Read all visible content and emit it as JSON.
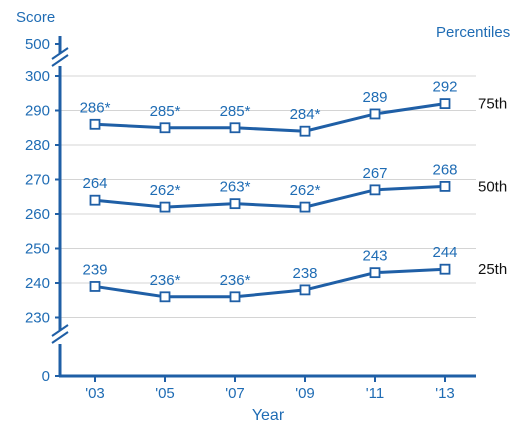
{
  "chart_data": {
    "type": "line",
    "ylabel": "Score",
    "xlabel": "Year",
    "legend_title": "Percentiles",
    "x": [
      "'03",
      "'05",
      "'07",
      "'09",
      "'11",
      "'13"
    ],
    "y_ticks": [
      "0",
      "230",
      "240",
      "250",
      "260",
      "270",
      "280",
      "290",
      "300",
      "500"
    ],
    "ylim_shown": [
      225,
      300
    ],
    "axis_breaks": "broken y-axis between 0 and 230 and between 300 and 500",
    "grid": true,
    "series": [
      {
        "name": "75th",
        "values": [
          286,
          285,
          285,
          284,
          289,
          292
        ],
        "labels": [
          "286*",
          "285*",
          "285*",
          "284*",
          "289",
          "292"
        ]
      },
      {
        "name": "50th",
        "values": [
          264,
          262,
          263,
          262,
          267,
          268
        ],
        "labels": [
          "264",
          "262*",
          "263*",
          "262*",
          "267",
          "268"
        ]
      },
      {
        "name": "25th",
        "values": [
          239,
          236,
          236,
          238,
          243,
          244
        ],
        "labels": [
          "239",
          "236*",
          "236*",
          "238",
          "243",
          "244"
        ]
      }
    ],
    "colors": {
      "line": "#1f5fa6",
      "text": "#1f6cb4",
      "grid": "#d4d4d4",
      "series_label": "#111111"
    }
  }
}
